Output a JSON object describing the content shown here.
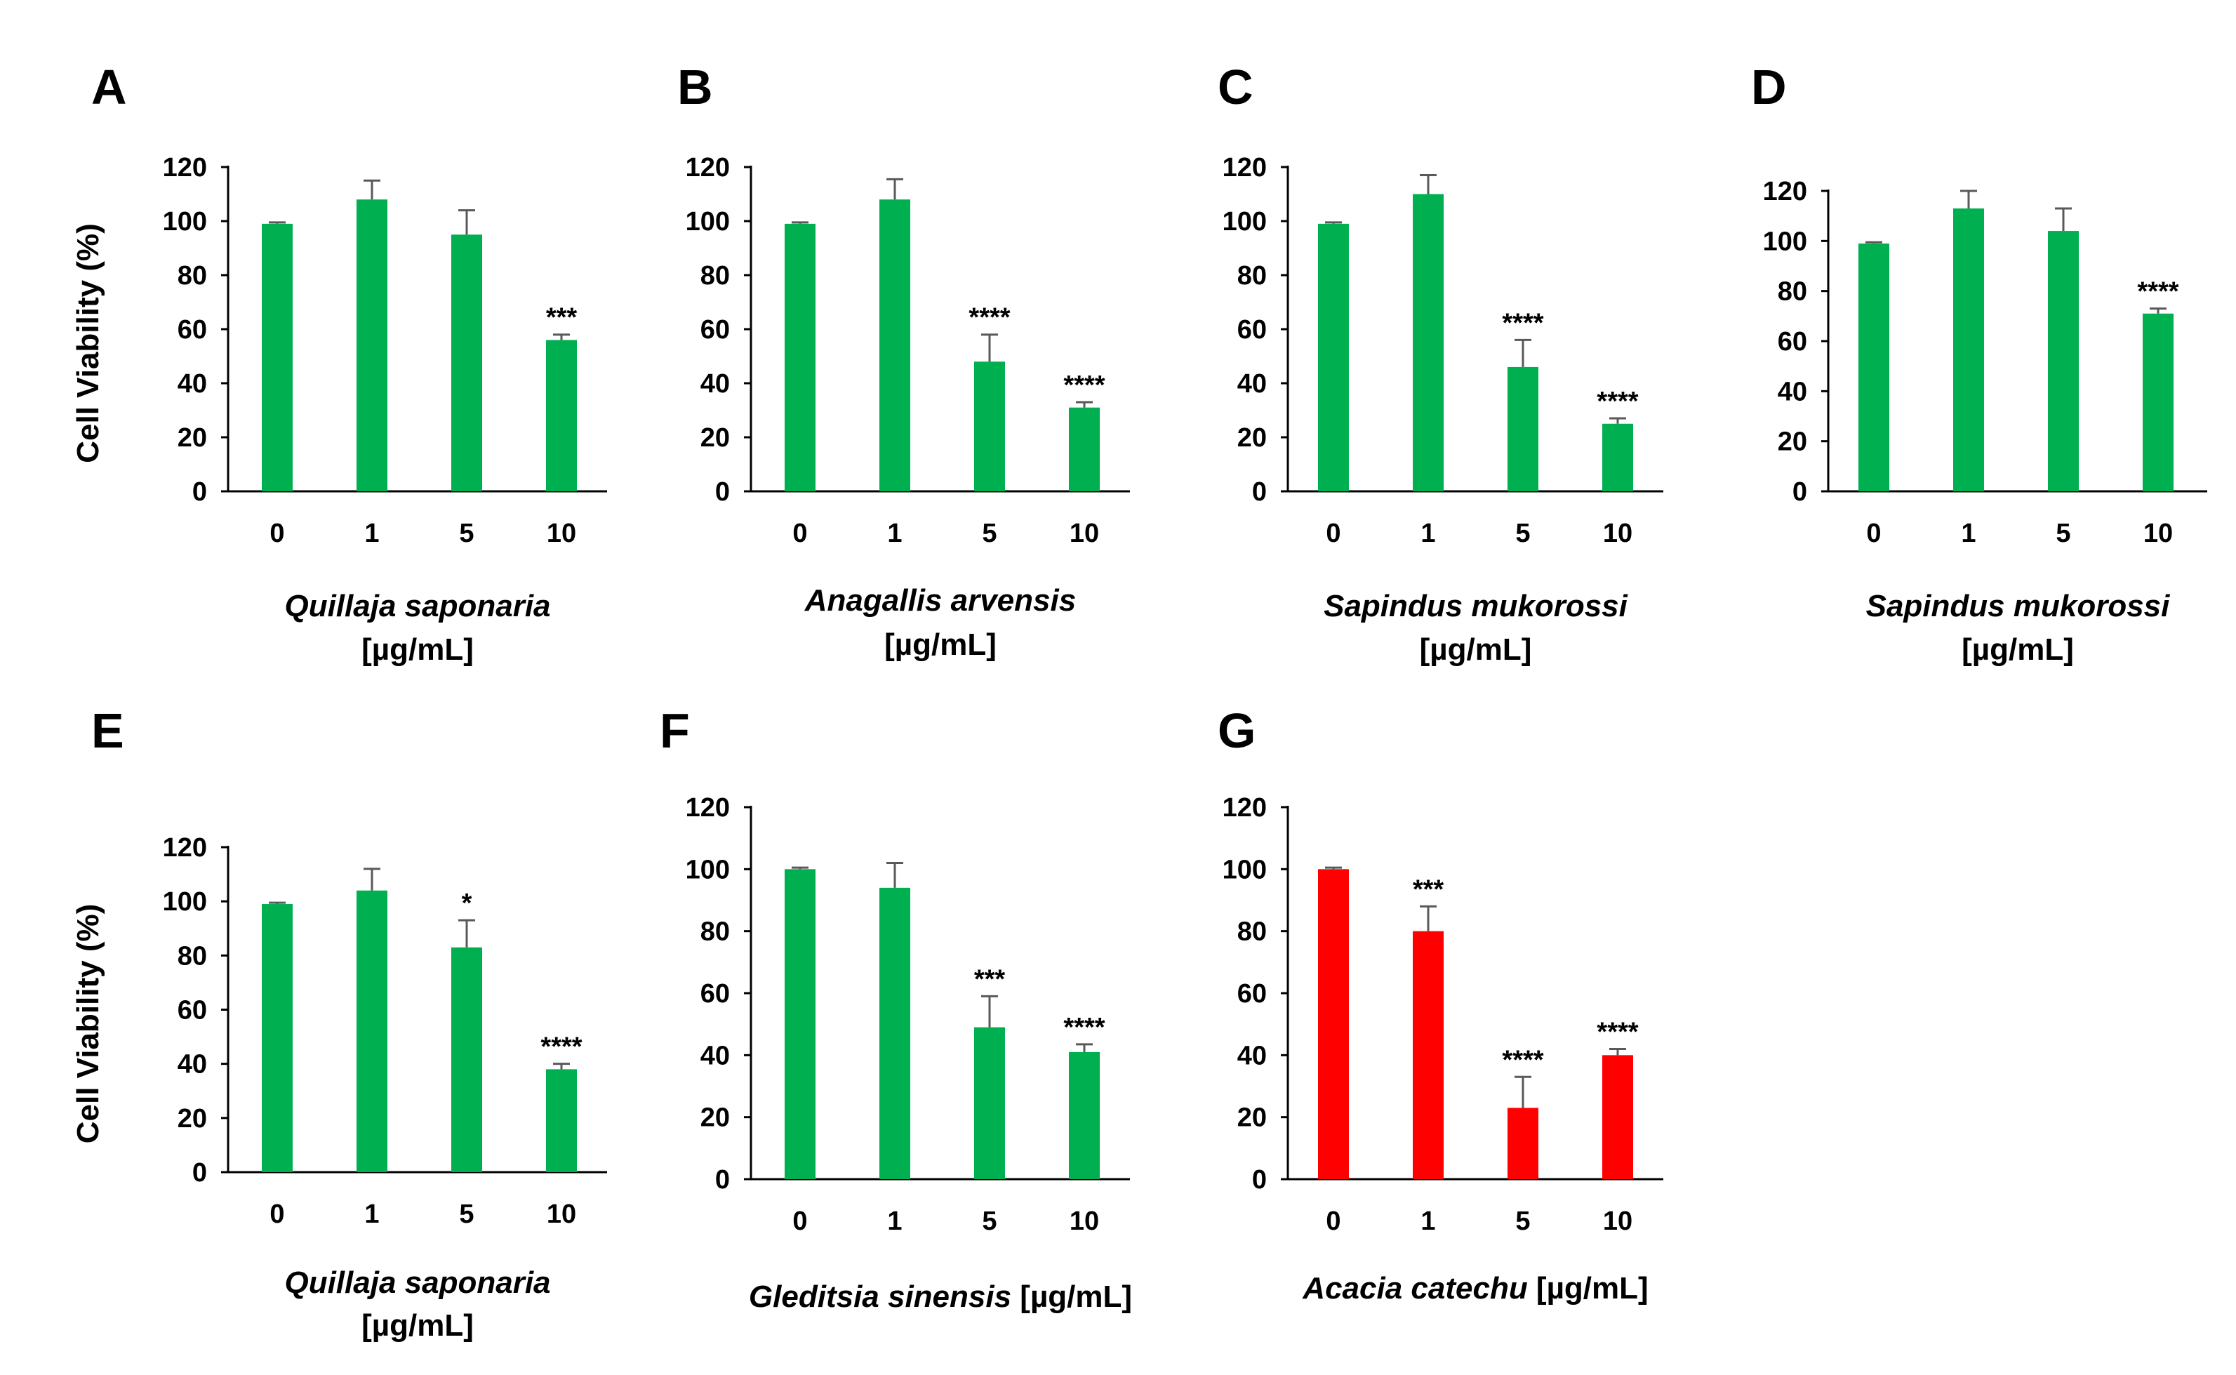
{
  "figure": {
    "bar_colors": {
      "green": "#00b050",
      "red": "#ff0000"
    },
    "axis_color": "#000000",
    "error_color": "#595959"
  },
  "chart_data": [
    {
      "panel": "A",
      "type": "bar",
      "color": "green",
      "categories": [
        "0",
        "1",
        "5",
        "10"
      ],
      "values": [
        99,
        108,
        95,
        56
      ],
      "errors": [
        0.5,
        7,
        9,
        2
      ],
      "significance": [
        "",
        "",
        "",
        "***"
      ],
      "ylim": [
        0,
        120
      ],
      "yticks": [
        0,
        20,
        40,
        60,
        80,
        100,
        120
      ],
      "ylabel": "Cell Viability (%)",
      "xlabel_species": "Quillaja saponaria",
      "xlabel_unit": "[µg/mL]",
      "xlabel_inline": false
    },
    {
      "panel": "B",
      "type": "bar",
      "color": "green",
      "categories": [
        "0",
        "1",
        "5",
        "10"
      ],
      "values": [
        99,
        108,
        48,
        31
      ],
      "errors": [
        0.5,
        7.5,
        10,
        2
      ],
      "significance": [
        "",
        "",
        "****",
        "****"
      ],
      "ylim": [
        0,
        120
      ],
      "yticks": [
        0,
        20,
        40,
        60,
        80,
        100,
        120
      ],
      "ylabel": "",
      "xlabel_species": "Anagallis arvensis",
      "xlabel_unit": "[µg/mL]",
      "xlabel_inline": false
    },
    {
      "panel": "C",
      "type": "bar",
      "color": "green",
      "categories": [
        "0",
        "1",
        "5",
        "10"
      ],
      "values": [
        99,
        110,
        46,
        25
      ],
      "errors": [
        0.5,
        7,
        10,
        2
      ],
      "significance": [
        "",
        "",
        "****",
        "****"
      ],
      "ylim": [
        0,
        120
      ],
      "yticks": [
        0,
        20,
        40,
        60,
        80,
        100,
        120
      ],
      "ylabel": "",
      "xlabel_species": "Sapindus mukorossi",
      "xlabel_unit": "[µg/mL]",
      "xlabel_inline": false
    },
    {
      "panel": "D",
      "type": "bar",
      "color": "green",
      "categories": [
        "0",
        "1",
        "5",
        "10"
      ],
      "values": [
        99,
        113,
        104,
        71
      ],
      "errors": [
        0.5,
        7,
        9,
        2
      ],
      "significance": [
        "",
        "",
        "",
        "****"
      ],
      "ylim": [
        0,
        120
      ],
      "yticks": [
        0,
        20,
        40,
        60,
        80,
        100,
        120
      ],
      "ylabel": "",
      "xlabel_species": "Sapindus mukorossi",
      "xlabel_unit": "[µg/mL]",
      "xlabel_inline": false
    },
    {
      "panel": "E",
      "type": "bar",
      "color": "green",
      "categories": [
        "0",
        "1",
        "5",
        "10"
      ],
      "values": [
        99,
        104,
        83,
        38
      ],
      "errors": [
        0.5,
        8,
        10,
        2
      ],
      "significance": [
        "",
        "",
        "*",
        "****"
      ],
      "ylim": [
        0,
        120
      ],
      "yticks": [
        0,
        20,
        40,
        60,
        80,
        100,
        120
      ],
      "ylabel": "Cell Viability (%)",
      "xlabel_species": "Quillaja saponaria",
      "xlabel_unit": "[µg/mL]",
      "xlabel_inline": false
    },
    {
      "panel": "F",
      "type": "bar",
      "color": "green",
      "categories": [
        "0",
        "1",
        "5",
        "10"
      ],
      "values": [
        100,
        94,
        49,
        41
      ],
      "errors": [
        0.5,
        8,
        10,
        2.5
      ],
      "significance": [
        "",
        "",
        "***",
        "****"
      ],
      "ylim": [
        0,
        120
      ],
      "yticks": [
        0,
        20,
        40,
        60,
        80,
        100,
        120
      ],
      "ylabel": "",
      "xlabel_species": "Gleditsia sinensis",
      "xlabel_unit": "[µg/mL]",
      "xlabel_inline": true
    },
    {
      "panel": "G",
      "type": "bar",
      "color": "red",
      "categories": [
        "0",
        "1",
        "5",
        "10"
      ],
      "values": [
        100,
        80,
        23,
        40
      ],
      "errors": [
        0.5,
        8,
        10,
        2
      ],
      "significance": [
        "",
        "***",
        "****",
        "****"
      ],
      "ylim": [
        0,
        120
      ],
      "yticks": [
        0,
        20,
        40,
        60,
        80,
        100,
        120
      ],
      "ylabel": "",
      "xlabel_species": "Acacia catechu",
      "xlabel_unit": "[µg/mL]",
      "xlabel_inline": true
    }
  ]
}
